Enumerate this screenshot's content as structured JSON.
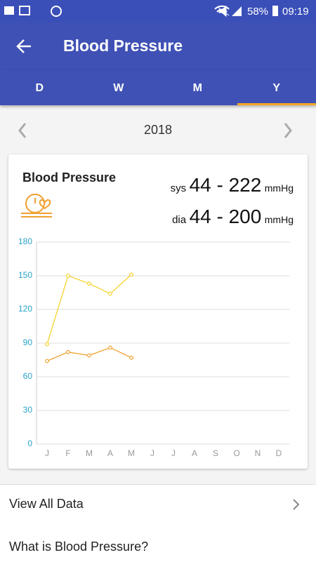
{
  "status_bar": {
    "battery": "58%",
    "time": "09:19"
  },
  "app_bar": {
    "title": "Blood Pressure"
  },
  "tabs": [
    "D",
    "W",
    "M",
    "Y"
  ],
  "selected_tab": 3,
  "period": {
    "year": "2018"
  },
  "card": {
    "title": "Blood Pressure",
    "sys_label": "sys",
    "sys_range": "44 - 222",
    "dia_label": "dia",
    "dia_range": "44 - 200",
    "unit": "mmHg"
  },
  "list": [
    "View All Data",
    "What is Blood Pressure?"
  ],
  "chart_data": {
    "type": "line",
    "categories": [
      "J",
      "F",
      "M",
      "A",
      "M",
      "J",
      "J",
      "A",
      "S",
      "O",
      "N",
      "D"
    ],
    "series": [
      {
        "color": "#f6d32d",
        "values": [
          89,
          150,
          143,
          134,
          151,
          null,
          null,
          null,
          null,
          null,
          null,
          null
        ]
      },
      {
        "color": "#f0a030",
        "values": [
          74,
          82,
          79,
          86,
          77,
          null,
          null,
          null,
          null,
          null,
          null,
          null
        ]
      }
    ],
    "ylim": [
      0,
      180
    ],
    "yticks": [
      0,
      30,
      60,
      90,
      120,
      150,
      180
    ],
    "grid": true
  }
}
